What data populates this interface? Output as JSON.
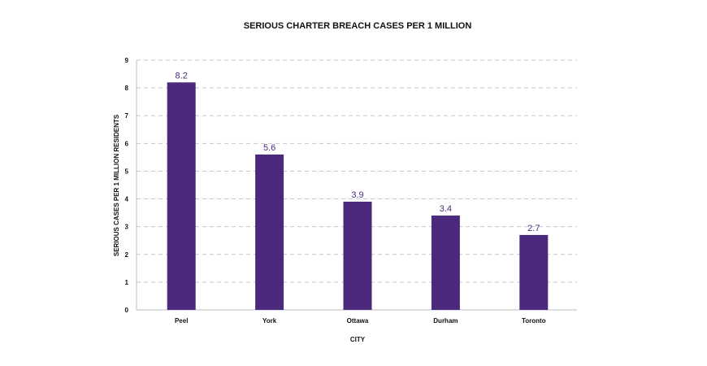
{
  "chart_data": {
    "type": "bar",
    "title": "SERIOUS CHARTER BREACH CASES PER 1 MILLION",
    "xlabel": "CITY",
    "ylabel": "SERIOUS CASES PER 1 MILLION RESIDENTS",
    "categories": [
      "Peel",
      "York",
      "Ottawa",
      "Durham",
      "Toronto"
    ],
    "values": [
      8.2,
      5.6,
      3.9,
      3.4,
      2.7
    ],
    "data_labels": [
      "8.2",
      "5.6",
      "3.9",
      "3.4",
      "2.7"
    ],
    "ylim": [
      0,
      9
    ],
    "yticks": [
      0,
      1,
      2,
      3,
      4,
      5,
      6,
      7,
      8,
      9
    ],
    "grid": true,
    "legend": "none",
    "colors": {
      "bar": "#4b2a7d",
      "label": "#4b2a7d",
      "grid": "#c8c8c8",
      "axis": "#bdbdbd"
    }
  }
}
